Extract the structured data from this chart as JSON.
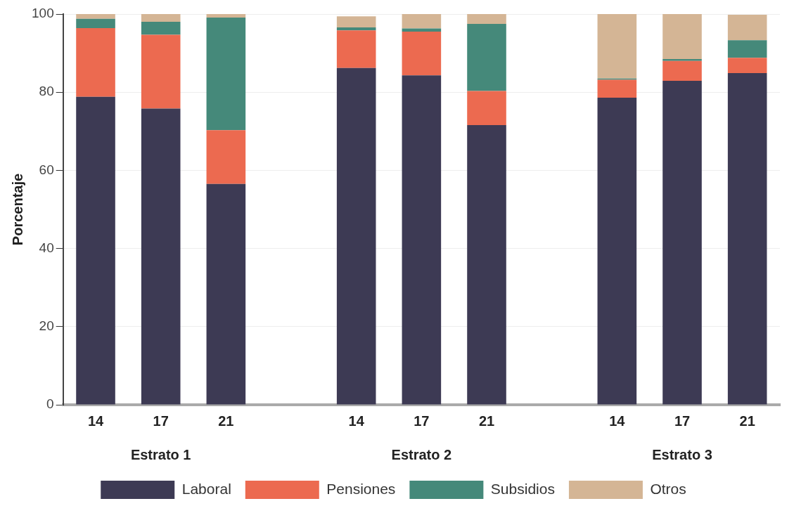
{
  "chart_data": {
    "type": "bar",
    "stacked": true,
    "ylabel": "Porcentaje",
    "categories": [
      "14",
      "17",
      "21",
      null,
      "14",
      "17",
      "21",
      null,
      "14",
      "17",
      "21"
    ],
    "annotations": [
      "Estrato 1",
      "Estrato 2",
      "Estrato 3"
    ],
    "ylim": [
      0,
      100
    ],
    "yticks": [
      0,
      20,
      40,
      60,
      80,
      100
    ],
    "grid": "y",
    "legend": "bottom",
    "series": [
      {
        "name": "Laboral",
        "color": "#3d3a54",
        "values": [
          78.8,
          75.8,
          56.5,
          null,
          86.2,
          84.3,
          71.6,
          null,
          78.6,
          82.9,
          84.9
        ]
      },
      {
        "name": "Pensiones",
        "color": "#ec6a50",
        "values": [
          17.6,
          18.9,
          13.8,
          null,
          9.6,
          11.2,
          8.7,
          null,
          4.6,
          5.1,
          3.9
        ]
      },
      {
        "name": "Subsidios",
        "color": "#45897a",
        "values": [
          2.4,
          3.3,
          28.8,
          null,
          0.8,
          0.8,
          17.2,
          null,
          0.3,
          0.5,
          4.5
        ]
      },
      {
        "name": "Otros",
        "color": "#d4b595",
        "values": [
          1.2,
          2.0,
          0.9,
          null,
          2.8,
          3.7,
          2.5,
          null,
          16.5,
          11.5,
          6.5
        ]
      }
    ]
  }
}
